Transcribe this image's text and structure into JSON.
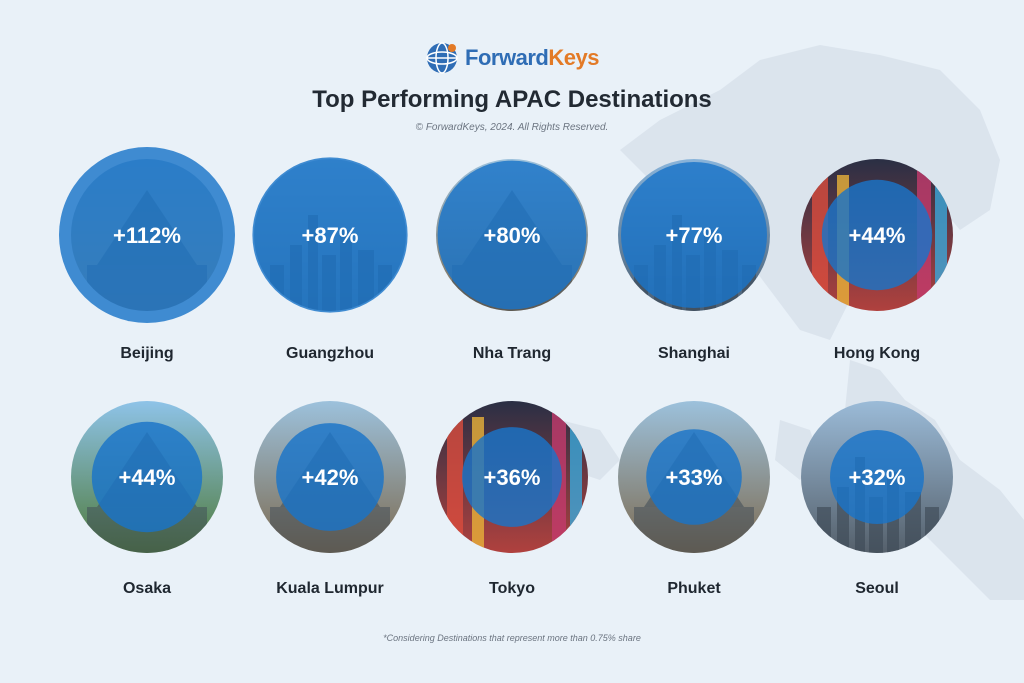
{
  "brand": {
    "part1": "Forward",
    "part2": "Keys"
  },
  "header": {
    "title": "Top Performing APAC Destinations",
    "copyright": "© ForwardKeys, 2024. All Rights Reserved."
  },
  "footnote": "*Considering Destinations that represent more than 0.75% share",
  "colors": {
    "bubble": "#1a74c8",
    "background": "#e9f1f8",
    "brand_blue": "#2f6db5",
    "brand_orange": "#e37a26"
  },
  "chart_data": {
    "type": "bubble",
    "title": "Top Performing APAC Destinations",
    "unit": "%",
    "categories": [
      "Beijing",
      "Guangzhou",
      "Nha Trang",
      "Shanghai",
      "Hong Kong",
      "Osaka",
      "Kuala Lumpur",
      "Tokyo",
      "Phuket",
      "Seoul"
    ],
    "values": [
      112,
      87,
      80,
      77,
      44,
      44,
      42,
      36,
      33,
      32
    ],
    "labels": [
      "+112%",
      "+87%",
      "+80%",
      "+77%",
      "+44%",
      "+44%",
      "+42%",
      "+36%",
      "+33%",
      "+32%"
    ],
    "photo_themes": [
      "palace",
      "city-bridge",
      "temple",
      "skyline",
      "neon-street",
      "castle",
      "temple",
      "neon-street",
      "temple",
      "tower"
    ],
    "grid": false,
    "legend": "none"
  }
}
